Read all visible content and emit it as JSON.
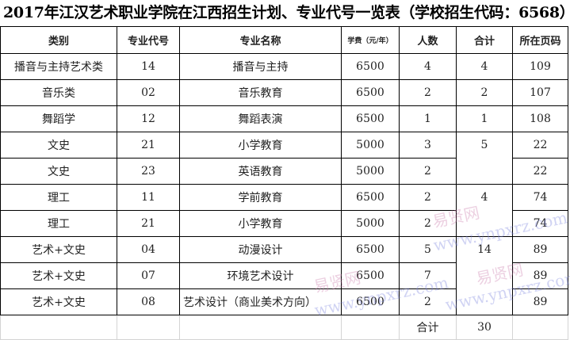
{
  "title": "2017年江汉艺术职业学院在江西招生计划、专业代号一览表（学校招生代码：6568）",
  "headers": [
    "类别",
    "专业代号",
    "专业名称",
    "学费（元/年）",
    "人数",
    "合计",
    "所在页码"
  ],
  "rows": [
    {
      "category": "播音与主持艺术类",
      "code": "14",
      "major": "播音与主持",
      "fee": "6500",
      "count": "4",
      "pages": "109"
    },
    {
      "category": "音乐类",
      "code": "02",
      "major": "音乐教育",
      "fee": "6500",
      "count": "2",
      "pages": "107"
    },
    {
      "category": "舞蹈学",
      "code": "12",
      "major": "舞蹈表演",
      "fee": "6500",
      "count": "1",
      "pages": "108"
    },
    {
      "category": "文史",
      "code": "21",
      "major": "小学教育",
      "fee": "5000",
      "count": "3",
      "pages": "22"
    },
    {
      "category": "文史",
      "code": "23",
      "major": "英语教育",
      "fee": "5000",
      "count": "2",
      "pages": "22"
    },
    {
      "category": "理工",
      "code": "11",
      "major": "学前教育",
      "fee": "6500",
      "count": "2",
      "pages": "74"
    },
    {
      "category": "理工",
      "code": "21",
      "major": "小学教育",
      "fee": "5000",
      "count": "2",
      "pages": "74"
    },
    {
      "category": "艺术+文史",
      "code": "04",
      "major": "动漫设计",
      "fee": "6500",
      "count": "5",
      "pages": "89"
    },
    {
      "category": "艺术+文史",
      "code": "07",
      "major": "环境艺术设计",
      "fee": "6500",
      "count": "7",
      "pages": "89"
    },
    {
      "category": "艺术+文史",
      "code": "08",
      "major": "艺术设计（商业美术方向）",
      "fee": "6500",
      "count": "2",
      "pages": "89"
    }
  ],
  "subtotals": [
    "4",
    "2",
    "1",
    "5",
    "4",
    "14"
  ],
  "total": {
    "label": "合计",
    "value": "30"
  },
  "watermark": {
    "cn": "易贤网",
    "url": "www.ynpxrz.com"
  }
}
